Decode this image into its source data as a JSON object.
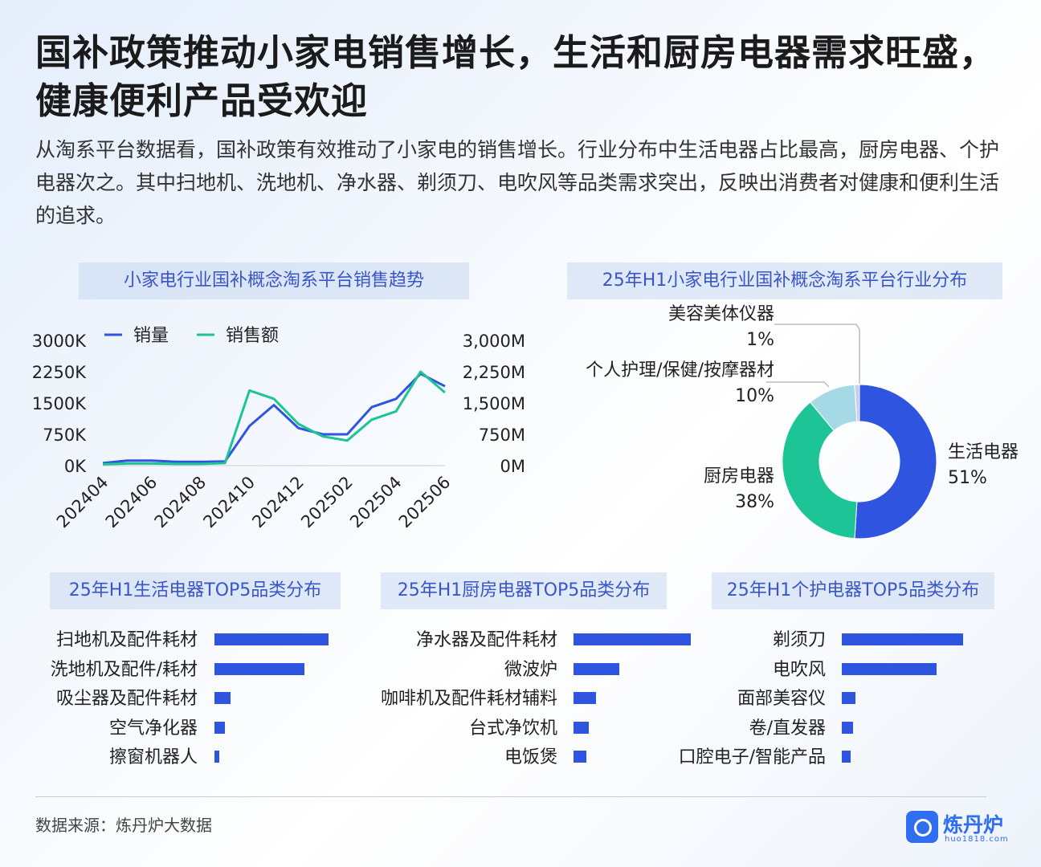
{
  "header": {
    "title": "国补政策推动小家电销售增长，生活和厨房电器需求旺盛，健康便利产品受欢迎",
    "subtitle": "从淘系平台数据看，国补政策有效推动了小家电的销售增长。行业分布中生活电器占比最高，厨房电器、个护电器次之。其中扫地机、洗地机、净水器、剃须刀、电吹风等品类需求突出，反映出消费者对健康和便利生活的追求。"
  },
  "footer": {
    "source": "数据来源：炼丹炉大数据",
    "logo_text": "炼丹炉",
    "logo_sub": "huo1818.com"
  },
  "colors": {
    "blue": "#2f55e0",
    "green": "#1dc496",
    "lightblue": "#a6d9e6",
    "faint": "#c8cdf0"
  },
  "chart_data": [
    {
      "type": "line",
      "title": "小家电行业国补概念淘系平台销售趋势",
      "x": [
        "202404",
        "202405",
        "202406",
        "202407",
        "202408",
        "202409",
        "202410",
        "202411",
        "202412",
        "202501",
        "202502",
        "202503",
        "202504",
        "202505",
        "202506"
      ],
      "xtick_labels": [
        "202404",
        "202406",
        "202408",
        "202410",
        "202412",
        "202502",
        "202504",
        "202506"
      ],
      "left_axis": {
        "ticks": [
          "3000K",
          "2250K",
          "1500K",
          "750K",
          "0K"
        ],
        "ylim": [
          0,
          3000
        ]
      },
      "right_axis": {
        "ticks": [
          "3,000M",
          "2,250M",
          "1,500M",
          "750M",
          "0M"
        ],
        "ylim": [
          0,
          3000
        ]
      },
      "series": [
        {
          "name": "销量",
          "axis": "left",
          "color": "#2f55e0",
          "values": [
            60,
            120,
            120,
            90,
            90,
            100,
            950,
            1450,
            900,
            750,
            750,
            1400,
            1600,
            2200,
            1900
          ]
        },
        {
          "name": "销售额",
          "axis": "right",
          "color": "#1dc496",
          "values": [
            30,
            50,
            50,
            40,
            40,
            60,
            1800,
            1600,
            1000,
            700,
            600,
            1100,
            1300,
            2250,
            1750
          ]
        }
      ]
    },
    {
      "type": "pie",
      "title": "25年H1小家电行业国补概念淘系平台行业分布",
      "slices": [
        {
          "label": "生活电器",
          "value": 51,
          "pct": "51%",
          "color": "#2f55e0"
        },
        {
          "label": "厨房电器",
          "value": 38,
          "pct": "38%",
          "color": "#1dc496"
        },
        {
          "label": "个人护理/保健/按摩器材",
          "value": 10,
          "pct": "10%",
          "color": "#a6d9e6"
        },
        {
          "label": "美容美体仪器",
          "value": 1,
          "pct": "1%",
          "color": "#c8cdf0"
        }
      ]
    },
    {
      "type": "bar",
      "title": "25年H1生活电器TOP5品类分布",
      "categories": [
        "扫地机及配件耗材",
        "洗地机及配件/耗材",
        "吸尘器及配件耗材",
        "空气净化器",
        "擦窗机器人"
      ],
      "values": [
        100,
        79,
        14,
        9,
        4
      ]
    },
    {
      "type": "bar",
      "title": "25年H1厨房电器TOP5品类分布",
      "categories": [
        "净水器及配件耗材",
        "微波炉",
        "咖啡机及配件耗材辅料",
        "台式净饮机",
        "电饭煲"
      ],
      "values": [
        100,
        39,
        19,
        13,
        11
      ]
    },
    {
      "type": "bar",
      "title": "25年H1个护电器TOP5品类分布",
      "categories": [
        "剃须刀",
        "电吹风",
        "面部美容仪",
        "卷/直发器",
        "口腔电子/智能产品"
      ],
      "values": [
        100,
        78,
        11,
        9,
        7
      ]
    }
  ]
}
